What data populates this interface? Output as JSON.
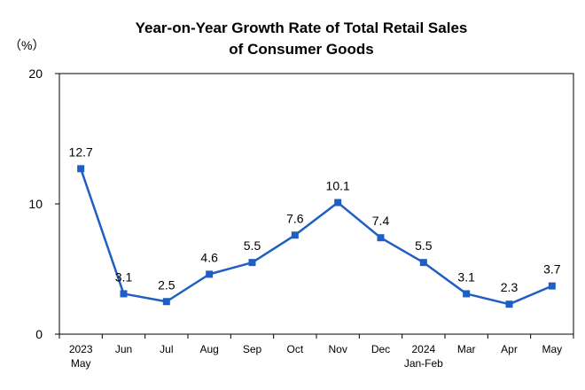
{
  "chart_data": {
    "type": "line",
    "title_lines": [
      "Year-on-Year Growth Rate of Total Retail Sales",
      "of Consumer Goods"
    ],
    "unit_label": "（%）",
    "categories": [
      [
        "2023",
        "May"
      ],
      [
        "Jun"
      ],
      [
        "Jul"
      ],
      [
        "Aug"
      ],
      [
        "Sep"
      ],
      [
        "Oct"
      ],
      [
        "Nov"
      ],
      [
        "Dec"
      ],
      [
        "2024",
        "Jan-Feb"
      ],
      [
        "Mar"
      ],
      [
        "Apr"
      ],
      [
        "May"
      ]
    ],
    "values": [
      12.7,
      3.1,
      2.5,
      4.6,
      5.5,
      7.6,
      10.1,
      7.4,
      5.5,
      3.1,
      2.3,
      3.7
    ],
    "data_labels": [
      "12.7",
      "3.1",
      "2.5",
      "4.6",
      "5.5",
      "7.6",
      "10.1",
      "7.4",
      "5.5",
      "3.1",
      "2.3",
      "3.7"
    ],
    "ylim": [
      0,
      20
    ],
    "yticks": [
      "0",
      "10",
      "20"
    ],
    "ytick_values": [
      0,
      10,
      20
    ],
    "grid": false,
    "legend": "none",
    "line_color": "#1F5FC4",
    "marker": "square"
  }
}
